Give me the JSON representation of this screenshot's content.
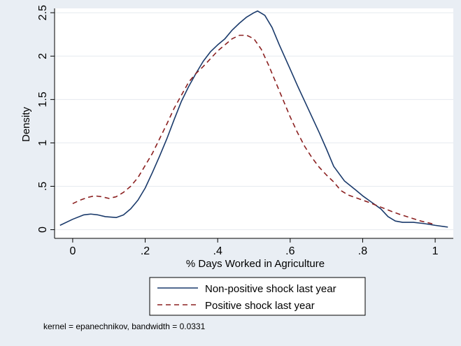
{
  "chart_data": {
    "type": "line",
    "title": "",
    "xlabel": "% Days Worked in Agriculture",
    "ylabel": "Density",
    "xlim": [
      -0.05,
      1.05
    ],
    "ylim": [
      -0.1,
      2.55
    ],
    "x_ticks": [
      0,
      0.2,
      0.4,
      0.6,
      0.8,
      1.0
    ],
    "x_tick_labels": [
      "0",
      ".2",
      ".4",
      ".6",
      ".8",
      "1"
    ],
    "y_ticks": [
      0,
      0.5,
      1.0,
      1.5,
      2.0,
      2.5
    ],
    "y_tick_labels": [
      "0",
      ".5",
      "1",
      "1.5",
      "2",
      "2.5"
    ],
    "grid": "horizontal",
    "legend_position": "bottom",
    "series": [
      {
        "name": "Non-positive shock last year",
        "style": "solid",
        "color": "#1a3a6b",
        "points": [
          [
            -0.035,
            0.05
          ],
          [
            0.0,
            0.12
          ],
          [
            0.03,
            0.17
          ],
          [
            0.05,
            0.18
          ],
          [
            0.07,
            0.17
          ],
          [
            0.09,
            0.15
          ],
          [
            0.12,
            0.14
          ],
          [
            0.14,
            0.17
          ],
          [
            0.16,
            0.24
          ],
          [
            0.18,
            0.34
          ],
          [
            0.2,
            0.48
          ],
          [
            0.22,
            0.66
          ],
          [
            0.24,
            0.85
          ],
          [
            0.26,
            1.05
          ],
          [
            0.28,
            1.27
          ],
          [
            0.3,
            1.48
          ],
          [
            0.32,
            1.65
          ],
          [
            0.34,
            1.8
          ],
          [
            0.36,
            1.94
          ],
          [
            0.38,
            2.05
          ],
          [
            0.4,
            2.13
          ],
          [
            0.42,
            2.2
          ],
          [
            0.44,
            2.3
          ],
          [
            0.46,
            2.38
          ],
          [
            0.48,
            2.45
          ],
          [
            0.5,
            2.5
          ],
          [
            0.51,
            2.52
          ],
          [
            0.53,
            2.47
          ],
          [
            0.55,
            2.33
          ],
          [
            0.57,
            2.13
          ],
          [
            0.6,
            1.85
          ],
          [
            0.62,
            1.66
          ],
          [
            0.64,
            1.48
          ],
          [
            0.66,
            1.3
          ],
          [
            0.68,
            1.12
          ],
          [
            0.7,
            0.93
          ],
          [
            0.72,
            0.73
          ],
          [
            0.75,
            0.56
          ],
          [
            0.78,
            0.46
          ],
          [
            0.8,
            0.39
          ],
          [
            0.82,
            0.33
          ],
          [
            0.85,
            0.24
          ],
          [
            0.87,
            0.15
          ],
          [
            0.89,
            0.1
          ],
          [
            0.91,
            0.085
          ],
          [
            0.94,
            0.085
          ],
          [
            0.97,
            0.07
          ],
          [
            1.0,
            0.05
          ],
          [
            1.035,
            0.03
          ]
        ]
      },
      {
        "name": "Positive shock last year",
        "style": "dashed",
        "color": "#8b2020",
        "points": [
          [
            0.0,
            0.3
          ],
          [
            0.02,
            0.34
          ],
          [
            0.04,
            0.37
          ],
          [
            0.06,
            0.39
          ],
          [
            0.08,
            0.38
          ],
          [
            0.1,
            0.36
          ],
          [
            0.12,
            0.38
          ],
          [
            0.14,
            0.43
          ],
          [
            0.16,
            0.5
          ],
          [
            0.18,
            0.6
          ],
          [
            0.2,
            0.74
          ],
          [
            0.22,
            0.88
          ],
          [
            0.24,
            1.05
          ],
          [
            0.26,
            1.22
          ],
          [
            0.28,
            1.4
          ],
          [
            0.3,
            1.55
          ],
          [
            0.32,
            1.7
          ],
          [
            0.34,
            1.8
          ],
          [
            0.36,
            1.88
          ],
          [
            0.38,
            1.97
          ],
          [
            0.4,
            2.06
          ],
          [
            0.42,
            2.13
          ],
          [
            0.44,
            2.2
          ],
          [
            0.46,
            2.24
          ],
          [
            0.48,
            2.24
          ],
          [
            0.5,
            2.2
          ],
          [
            0.52,
            2.08
          ],
          [
            0.54,
            1.9
          ],
          [
            0.56,
            1.7
          ],
          [
            0.58,
            1.5
          ],
          [
            0.6,
            1.3
          ],
          [
            0.62,
            1.12
          ],
          [
            0.64,
            0.96
          ],
          [
            0.66,
            0.83
          ],
          [
            0.68,
            0.72
          ],
          [
            0.7,
            0.63
          ],
          [
            0.72,
            0.55
          ],
          [
            0.74,
            0.45
          ],
          [
            0.76,
            0.4
          ],
          [
            0.78,
            0.37
          ],
          [
            0.8,
            0.34
          ],
          [
            0.82,
            0.31
          ],
          [
            0.85,
            0.26
          ],
          [
            0.88,
            0.21
          ],
          [
            0.9,
            0.18
          ],
          [
            0.93,
            0.14
          ],
          [
            0.96,
            0.1
          ],
          [
            0.99,
            0.07
          ],
          [
            1.0,
            0.05
          ]
        ]
      }
    ]
  },
  "note": "kernel = epanechnikov, bandwidth = 0.0331"
}
